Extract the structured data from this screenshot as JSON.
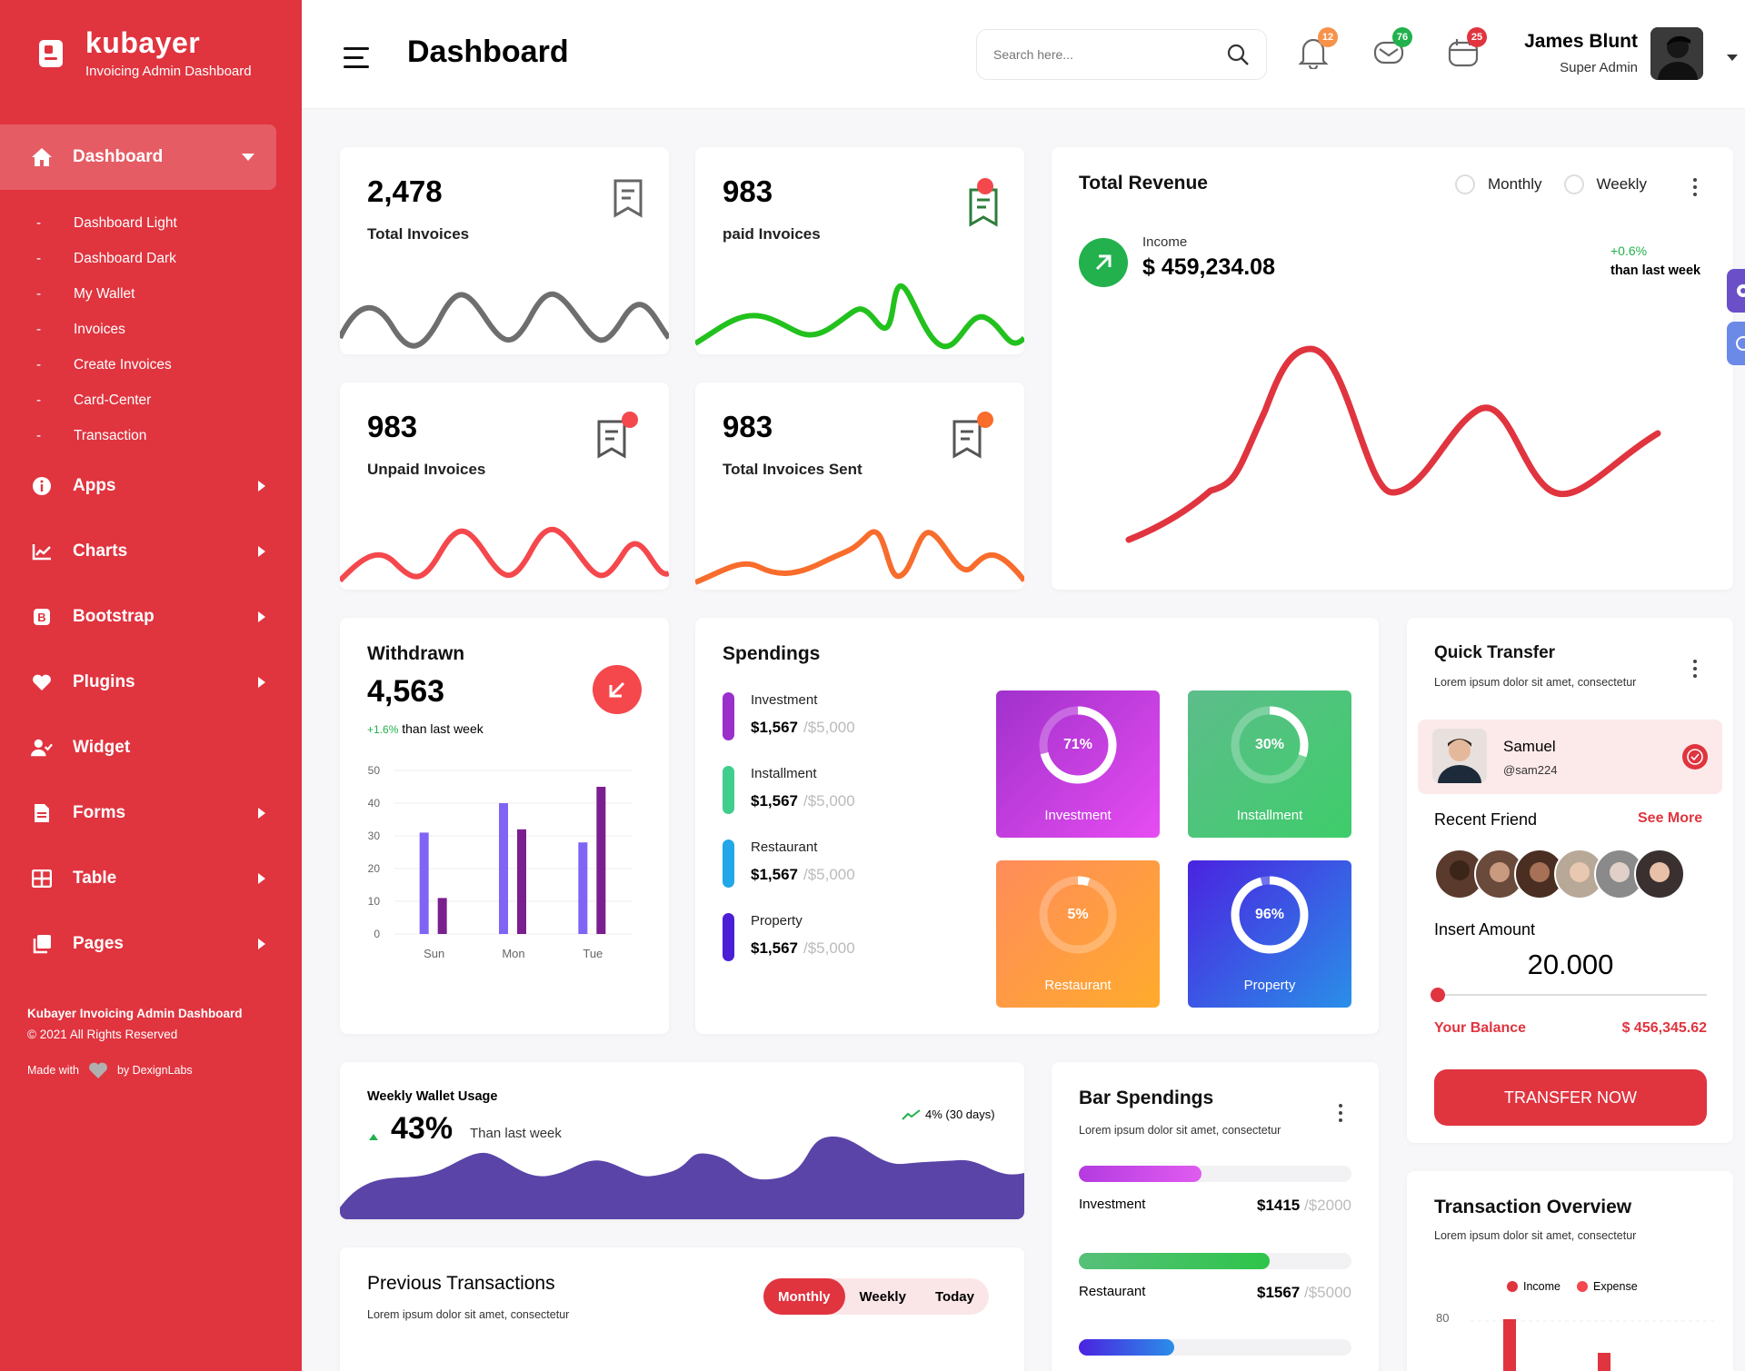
{
  "brand": {
    "name": "kubayer",
    "tagline": "Invoicing Admin Dashboard"
  },
  "sidebar": {
    "active": {
      "label": "Dashboard",
      "icon": "home-icon"
    },
    "sub_items": [
      "Dashboard Light",
      "Dashboard Dark",
      "My Wallet",
      "Invoices",
      "Create Invoices",
      "Card-Center",
      "Transaction"
    ],
    "items": [
      {
        "label": "Apps",
        "icon": "info-icon"
      },
      {
        "label": "Charts",
        "icon": "line-chart-icon"
      },
      {
        "label": "Bootstrap",
        "icon": "bootstrap-icon"
      },
      {
        "label": "Plugins",
        "icon": "heart-icon"
      },
      {
        "label": "Widget",
        "icon": "user-check-icon"
      },
      {
        "label": "Forms",
        "icon": "document-icon"
      },
      {
        "label": "Table",
        "icon": "table-icon"
      },
      {
        "label": "Pages",
        "icon": "pages-icon"
      }
    ],
    "footer": {
      "title": "Kubayer Invoicing Admin Dashboard",
      "copyright": "© 2021 All Rights Reserved",
      "made_with": "Made with",
      "by": "by DexignLabs"
    }
  },
  "header": {
    "title": "Dashboard",
    "search_placeholder": "Search here...",
    "notifications": {
      "count": "12",
      "color": "#f8924a"
    },
    "messages": {
      "count": "76",
      "color": "#22b14c"
    },
    "calendar": {
      "count": "25",
      "color": "#e0343f"
    },
    "user": {
      "name": "James Blunt",
      "role": "Super Admin"
    }
  },
  "stats": [
    {
      "value": "2,478",
      "label": "Total Invoices",
      "color": "#6e6e6e"
    },
    {
      "value": "983",
      "label": "paid Invoices",
      "color": "#22c11e"
    },
    {
      "value": "983",
      "label": "Unpaid Invoices",
      "color": "#f4484d"
    },
    {
      "value": "983",
      "label": "Total Invoices Sent",
      "color": "#f86c2c"
    }
  ],
  "revenue": {
    "title": "Total Revenue",
    "options": [
      "Monthly",
      "Weekly"
    ],
    "income_label": "Income",
    "income_value": "$ 459,234.08",
    "change": "+0.6%",
    "change_note": "than last week"
  },
  "withdrawn": {
    "title": "Withdrawn",
    "value": "4,563",
    "change": "+1.6%",
    "change_note": "than last week"
  },
  "withdrawn_chart": {
    "type": "bar",
    "categories": [
      "Sun",
      "Mon",
      "Tue"
    ],
    "series": [
      {
        "values": [
          31,
          40,
          28
        ]
      },
      {
        "values": [
          11,
          32,
          45
        ]
      }
    ],
    "yticks": [
      "50",
      "40",
      "30",
      "20",
      "10",
      "0"
    ],
    "ylim": [
      0,
      50
    ]
  },
  "spendings": {
    "title": "Spendings",
    "items": [
      {
        "name": "Investment",
        "value": "$1,567",
        "total": "/$5,000",
        "color": "#9b2fc9"
      },
      {
        "name": "Installment",
        "value": "$1,567",
        "total": "/$5,000",
        "color": "#3fce8c"
      },
      {
        "name": "Restaurant",
        "value": "$1,567",
        "total": "/$5,000",
        "color": "#22a7e8"
      },
      {
        "name": "Property",
        "value": "$1,567",
        "total": "/$5,000",
        "color": "#4a1fd6"
      }
    ],
    "tiles": [
      {
        "label": "Investment",
        "pct": "71%",
        "value": 71
      },
      {
        "label": "Installment",
        "pct": "30%",
        "value": 30
      },
      {
        "label": "Restaurant",
        "pct": "5%",
        "value": 5
      },
      {
        "label": "Property",
        "pct": "96%",
        "value": 96
      }
    ]
  },
  "quick_transfer": {
    "title": "Quick Transfer",
    "subtitle": "Lorem ipsum dolor sit amet, consectetur",
    "contact": {
      "name": "Samuel",
      "handle": "@sam224"
    },
    "recent_friend": "Recent Friend",
    "see_more": "See More",
    "insert_amount": "Insert Amount",
    "amount": "20.000",
    "balance_label": "Your Balance",
    "balance_value": "$ 456,345.62",
    "button": "TRANSFER NOW"
  },
  "wallet": {
    "title": "Weekly Wallet Usage",
    "value": "43%",
    "note": "Than last week",
    "trend": "4% (30 days)"
  },
  "bar_spendings": {
    "title": "Bar Spendings",
    "subtitle": "Lorem ipsum dolor sit amet, consectetur",
    "items": [
      {
        "name": "Investment",
        "value": "$1415",
        "total": "/$2000",
        "fill": 0.45,
        "color": "#b43be0"
      },
      {
        "name": "Restaurant",
        "value": "$1567",
        "total": "/$5000",
        "fill": 0.7,
        "color": "#33c06f"
      },
      {
        "name": "",
        "value": "",
        "total": "",
        "fill": 0.35,
        "color": "#3a3ae8"
      }
    ]
  },
  "previous": {
    "title": "Previous Transactions",
    "subtitle": "Lorem ipsum dolor sit amet, consectetur",
    "tabs": [
      "Monthly",
      "Weekly",
      "Today"
    ]
  },
  "overview": {
    "title": "Transaction Overview",
    "subtitle": "Lorem ipsum dolor sit amet, consectetur",
    "legend": [
      "Income",
      "Expense"
    ],
    "ytick": "80"
  }
}
